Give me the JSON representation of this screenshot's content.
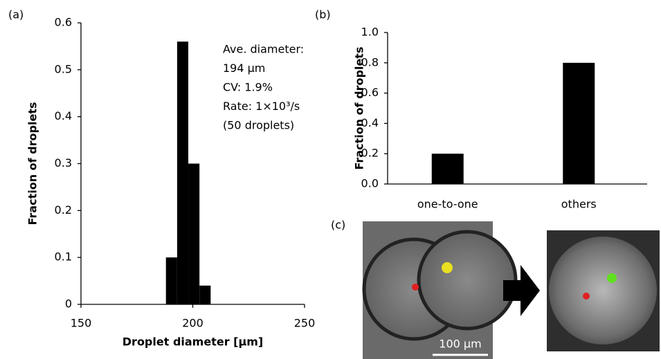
{
  "chart_data": [
    {
      "type": "histogram",
      "label": "(a)",
      "x_label": "Droplet diameter [µm]",
      "y_label": "Fraction of droplets",
      "bins": [
        188,
        193,
        198,
        203,
        208
      ],
      "values": [
        0.1,
        0.56,
        0.3,
        0.04
      ],
      "color": "#000000",
      "xlim": [
        150,
        250
      ],
      "xticks": [
        150,
        200,
        250
      ],
      "ylim": [
        0,
        0.6
      ],
      "yticks": [
        0,
        0.1,
        0.2,
        0.3,
        0.4,
        0.5,
        0.6
      ],
      "annotations": [
        "Ave. diameter:",
        "194 µm",
        "CV: 1.9%",
        "Rate: 1×10³/s",
        "(50 droplets)"
      ]
    },
    {
      "type": "bar",
      "label": "(b)",
      "y_label": "Fraction of droplets",
      "categories": [
        "one-to-one",
        "others"
      ],
      "values": [
        0.2,
        0.8
      ],
      "color": "#000000",
      "ylim": [
        0,
        1
      ],
      "yticks": [
        {
          "value": 0,
          "label": "0.0"
        },
        0.2,
        0.4,
        0.6,
        0.8,
        {
          "value": 1,
          "label": "1.0"
        }
      ]
    }
  ],
  "panel_c": {
    "label": "(c)",
    "scale_bar": "100 µm"
  }
}
